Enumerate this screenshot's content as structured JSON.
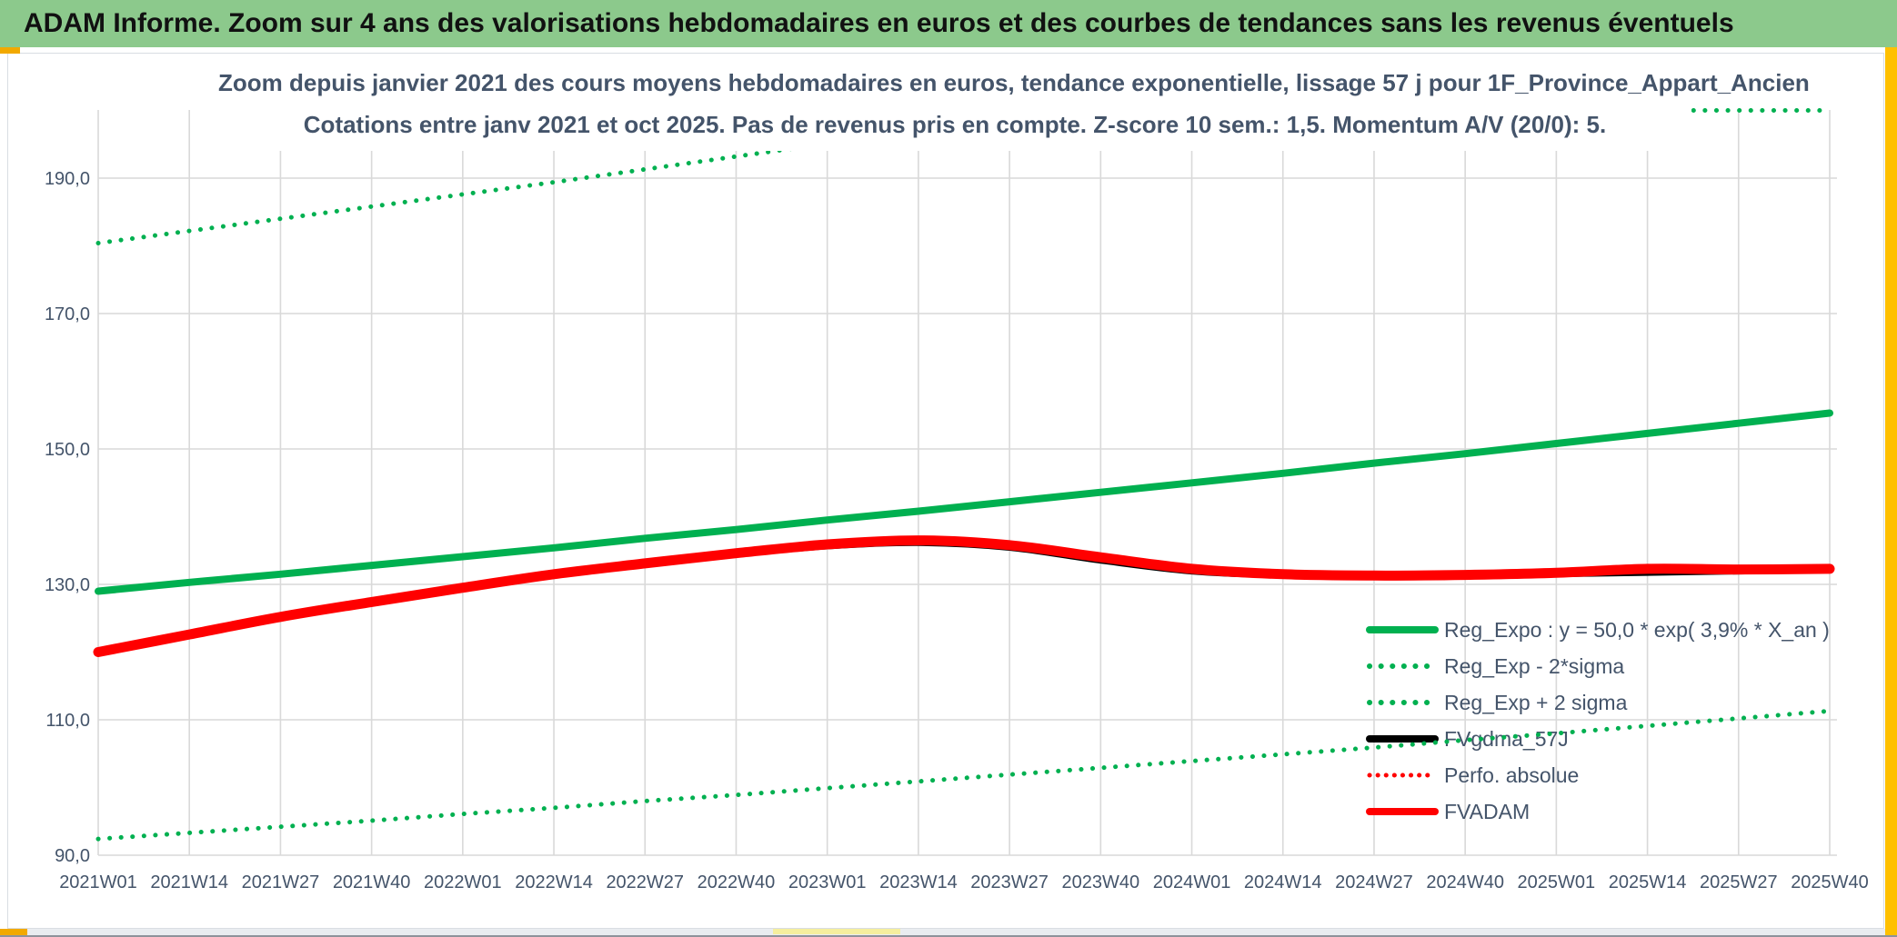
{
  "header": {
    "title": "ADAM Informe. Zoom sur 4 ans des valorisations hebdomadaires en euros et des courbes de tendances sans les revenus éventuels",
    "bg_color": "#8CC98C",
    "text_color": "#111111"
  },
  "chart": {
    "title_line1": "Zoom depuis janvier 2021 des cours moyens hebdomadaires en euros, tendance exponentielle, lissage 57 j pour 1F_Province_Appart_Ancien",
    "title_line2": "Cotations entre janv 2021 et oct 2025. Pas de revenus pris en compte. Z-score 10 sem.: 1,5. Momentum A/V (20/0): 5.",
    "text_color": "#44546A",
    "grid_color": "#D9D9D9",
    "background": "#FFFFFF"
  },
  "decorations": {
    "accent_amber": "#F2A900",
    "right_bar_color": "#FFC000",
    "bottom_track_color": "#E9ECF0",
    "bottom_thumb_color": "#F5EE9E",
    "bottom_edge_color": "#8E939B"
  },
  "chart_data": {
    "type": "line",
    "title": "Zoom depuis janvier 2021 des cours moyens hebdomadaires en euros, tendance exponentielle, lissage 57 j pour 1F_Province_Appart_Ancien — Cotations entre janv 2021 et oct 2025. Pas de revenus pris en compte. Z-score 10 sem.: 1,5. Momentum A/V (20/0): 5.",
    "xlabel": "",
    "ylabel": "",
    "grid": true,
    "legend_position": "inside-lower-right",
    "x_axis": {
      "tick_labels": [
        "2021W01",
        "2021W14",
        "2021W27",
        "2021W40",
        "2022W01",
        "2022W14",
        "2022W27",
        "2022W40",
        "2023W01",
        "2023W14",
        "2023W27",
        "2023W40",
        "2024W01",
        "2024W14",
        "2024W27",
        "2024W40",
        "2025W01",
        "2025W14",
        "2025W27",
        "2025W40"
      ]
    },
    "y_axis": {
      "min": 90,
      "max": 200,
      "major_unit": 20,
      "tick_values": [
        90,
        110,
        130,
        150,
        170,
        190
      ],
      "tick_labels": [
        "90,0",
        "110,0",
        "130,0",
        "150,0",
        "170,0",
        "190,0"
      ]
    },
    "series": [
      {
        "name": "Reg_Expo : y = 50,0 * exp( 3,9% *  X_an )",
        "color": "#00B050",
        "style": "solid",
        "width": 8,
        "smooth": false,
        "values": [
          129.0,
          130.3,
          131.5,
          132.8,
          134.1,
          135.4,
          136.8,
          138.1,
          139.5,
          140.8,
          142.2,
          143.6,
          145.0,
          146.4,
          147.9,
          149.3,
          150.8,
          152.3,
          153.8,
          155.3
        ]
      },
      {
        "name": "Reg_Exp - 2*sigma",
        "color": "#00B050",
        "style": "dotted",
        "width": 5,
        "smooth": false,
        "values": [
          92.4,
          93.3,
          94.2,
          95.1,
          96.1,
          97.0,
          98.0,
          98.9,
          99.9,
          100.9,
          101.9,
          102.9,
          103.9,
          104.9,
          105.9,
          107.0,
          108.0,
          109.1,
          110.2,
          111.3
        ]
      },
      {
        "name": "Reg_Exp + 2 sigma",
        "color": "#00B050",
        "style": "dotted",
        "width": 5,
        "smooth": false,
        "note": "values above axis max 200 are clipped flat at 200 from 2023W40 onward",
        "values": [
          180.4,
          182.2,
          184.0,
          185.8,
          187.6,
          189.4,
          191.3,
          193.2,
          195.1,
          197.0,
          198.9,
          200.0,
          200.0,
          200.0,
          200.0,
          200.0,
          200.0,
          200.0,
          200.0,
          200.0
        ]
      },
      {
        "name": "FVgdma_57J",
        "color": "#000000",
        "style": "solid",
        "width": 8,
        "smooth": true,
        "values": [
          120.0,
          122.6,
          125.2,
          127.4,
          129.5,
          131.4,
          133.0,
          134.5,
          135.7,
          136.2,
          135.5,
          133.6,
          132.0,
          131.4,
          131.3,
          131.4,
          131.6,
          131.8,
          132.0,
          132.2
        ]
      },
      {
        "name": "Perfo. absolue",
        "color": "#FF0000",
        "style": "dotted",
        "width": 4,
        "smooth": true,
        "values": [
          120.0,
          122.6,
          125.2,
          127.4,
          129.5,
          131.5,
          133.1,
          134.6,
          135.9,
          136.5,
          135.8,
          134.0,
          132.3,
          131.5,
          131.3,
          131.4,
          131.7,
          132.3,
          132.2,
          132.3
        ]
      },
      {
        "name": "FVADAM",
        "color": "#FF0000",
        "style": "solid",
        "width": 11,
        "smooth": true,
        "values": [
          120.0,
          122.6,
          125.2,
          127.4,
          129.5,
          131.5,
          133.1,
          134.6,
          135.9,
          136.5,
          135.8,
          134.0,
          132.3,
          131.5,
          131.3,
          131.4,
          131.7,
          132.3,
          132.2,
          132.3
        ]
      }
    ]
  }
}
